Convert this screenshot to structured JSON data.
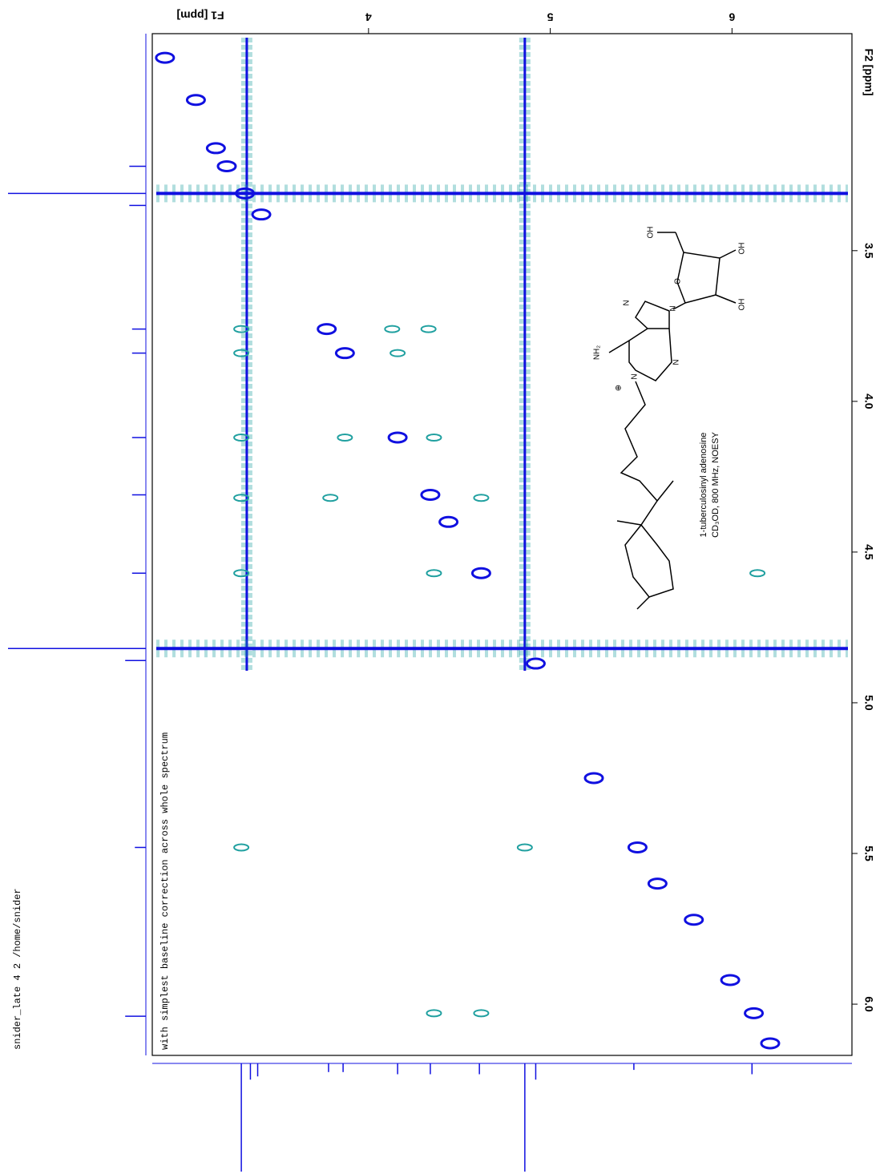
{
  "chart_data": {
    "type": "contour",
    "xlabel": "F1 [ppm]",
    "ylabel": "F2 [ppm]",
    "xlim": [
      2.81,
      6.66
    ],
    "ylim": [
      2.78,
      6.17
    ],
    "xticks": [
      4,
      5,
      6
    ],
    "yticks": [
      3.5,
      {
        "value": 4,
        "label": "4.0"
      },
      4.5,
      {
        "value": 5,
        "label": "5.0"
      },
      5.5,
      {
        "value": 6,
        "label": "6.0"
      }
    ],
    "series": [
      {
        "color": "#1010e0",
        "x": [
          2.88,
          3.05,
          3.16,
          3.22,
          3.32,
          3.41,
          3.77,
          3.87,
          4.16,
          4.34,
          4.44,
          4.62,
          4.92,
          5.24,
          5.48,
          5.59,
          5.79,
          5.99,
          6.12,
          6.21
        ],
        "y": [
          2.86,
          3.0,
          3.16,
          3.22,
          3.31,
          3.38,
          3.76,
          3.84,
          4.12,
          4.31,
          4.4,
          4.57,
          4.87,
          5.25,
          5.48,
          5.6,
          5.72,
          5.92,
          6.03,
          6.13
        ]
      },
      {
        "color": "#20a0a0",
        "x": [
          3.3,
          3.3,
          3.3,
          3.3,
          3.3,
          3.3,
          4.13,
          4.33,
          4.16,
          3.87,
          4.36,
          3.79,
          4.62,
          4.36,
          6.14,
          4.62,
          4.86,
          4.36
        ],
        "y": [
          3.76,
          3.84,
          4.12,
          4.32,
          4.57,
          5.48,
          3.76,
          3.76,
          3.84,
          4.12,
          4.12,
          4.32,
          4.32,
          4.57,
          4.57,
          6.03,
          5.48,
          6.03
        ]
      }
    ],
    "ridges": {
      "x": [
        3.33,
        4.86
      ],
      "y": [
        3.31,
        4.82
      ]
    },
    "projections": {
      "f2": {
        "positions": [
          3.22,
          3.31,
          3.35,
          3.76,
          3.84,
          4.12,
          4.31,
          4.57,
          4.82,
          4.86,
          5.48,
          6.04
        ],
        "intensity": [
          0.12,
          1.0,
          0.12,
          0.1,
          0.1,
          0.1,
          0.1,
          0.1,
          1.0,
          0.15,
          0.08,
          0.15
        ]
      },
      "f1": {
        "positions": [
          3.3,
          3.35,
          3.39,
          3.78,
          3.86,
          4.16,
          4.34,
          4.61,
          4.86,
          4.92,
          5.46,
          6.11
        ],
        "intensity": [
          1.0,
          0.15,
          0.12,
          0.08,
          0.08,
          0.1,
          0.1,
          0.1,
          1.0,
          0.15,
          0.06,
          0.1
        ]
      }
    },
    "note": "with simplest baseline correction across whole spectrum",
    "footer": "snider_late  4  2  /home/snider",
    "compound": "1-tuberculosinyl adenosine",
    "conditions": "CD₃OD, 800 MHz,  NOESY"
  },
  "structure": {
    "labels": [
      "OH",
      "OH",
      "OH",
      "O",
      "N",
      "N",
      "N",
      "N",
      "NH₂",
      "⊕"
    ]
  }
}
